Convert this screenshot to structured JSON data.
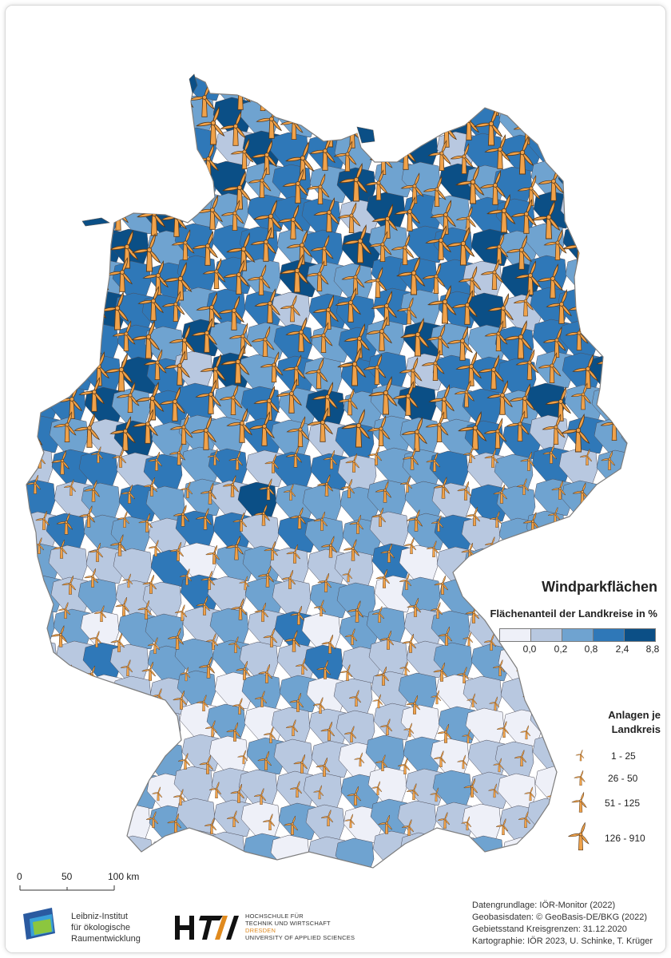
{
  "legend": {
    "title": "Windparkflächen",
    "subtitle": "Flächenanteil der Landkreise in %",
    "classes": [
      {
        "color": "#eef0f8"
      },
      {
        "color": "#b8c8e0"
      },
      {
        "color": "#6fa3d0"
      },
      {
        "color": "#2f78b8"
      },
      {
        "color": "#0b4f86"
      }
    ],
    "ticks": [
      "0,0",
      "0,2",
      "0,8",
      "2,4",
      "8,8"
    ]
  },
  "turbine_legend": {
    "title_line1": "Anlagen je",
    "title_line2": "Landkreis",
    "classes": [
      {
        "label": "1 - 25",
        "size": 1
      },
      {
        "label": "26 - 50",
        "size": 2
      },
      {
        "label": "51 - 125",
        "size": 3
      },
      {
        "label": "126 - 910",
        "size": 4
      }
    ],
    "color": "#f0a24a"
  },
  "scalebar": {
    "labels": [
      "0",
      "50",
      "100 km"
    ]
  },
  "credits": [
    "Datengrundlage: IÖR-Monitor (2022)",
    "Geobasisdaten: © GeoBasis-DE/BKG (2022)",
    "Gebietsstand Kreisgrenzen: 31.12.2020",
    "Kartographie: IÖR 2023, U. Schinke, T. Krüger"
  ],
  "logos": {
    "ioer": [
      "Leibniz-Institut",
      "für ökologische",
      "Raumentwicklung"
    ],
    "htw_mark": "HTW",
    "htw": [
      "HOCHSCHULE FÜR",
      "TECHNIK UND WIRTSCHAFT",
      "DRESDEN",
      "UNIVERSITY OF APPLIED SCIENCES"
    ]
  }
}
